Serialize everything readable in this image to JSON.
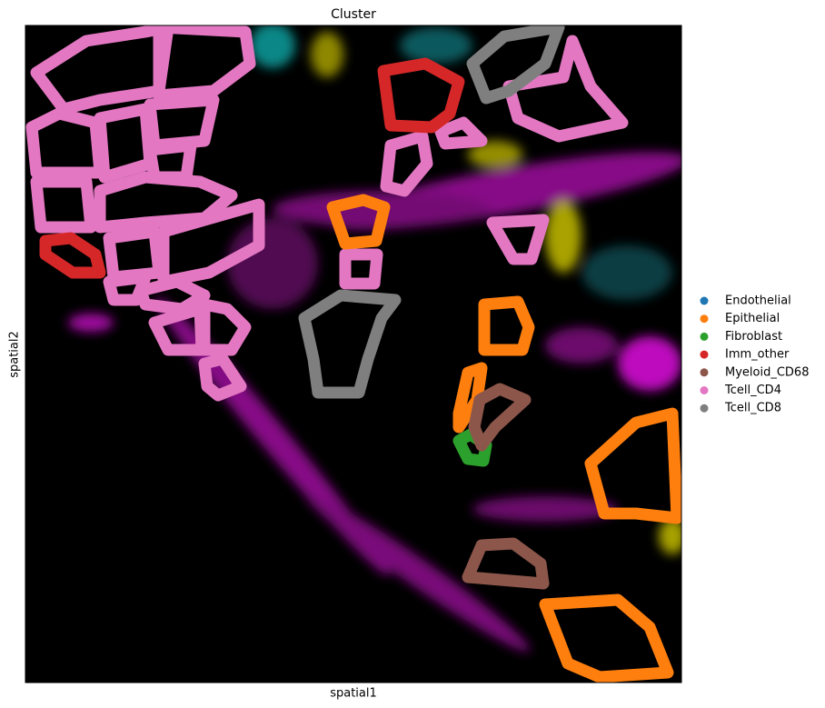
{
  "chart_data": {
    "type": "spatial",
    "title": "Cluster",
    "x_label": "spatial1",
    "y_label": "spatial2",
    "series": [
      {
        "name": "Endothelial",
        "color": "#1f77b4"
      },
      {
        "name": "Epithelial",
        "color": "#ff7f0e"
      },
      {
        "name": "Fibroblast",
        "color": "#2ca02c"
      },
      {
        "name": "Imm_other",
        "color": "#d62728"
      },
      {
        "name": "Myeloid_CD68",
        "color": "#8c564b"
      },
      {
        "name": "Tcell_CD4",
        "color": "#e377c2"
      },
      {
        "name": "Tcell_CD8",
        "color": "#7f7f7f"
      }
    ]
  }
}
